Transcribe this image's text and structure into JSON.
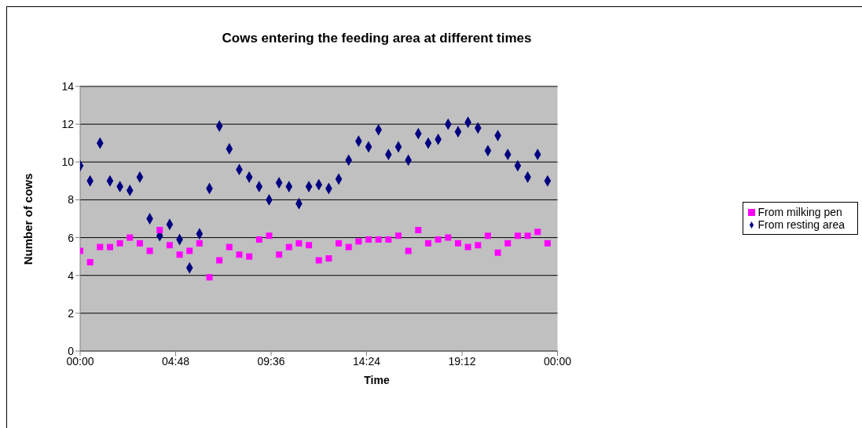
{
  "chart_data": {
    "type": "scatter",
    "title": "Cows entering the feeding area at different times",
    "xlabel": "Time",
    "ylabel": "Number of cows",
    "x": [
      0,
      0.5,
      1,
      1.5,
      2,
      2.5,
      3,
      3.5,
      4,
      4.5,
      5,
      5.5,
      6,
      6.5,
      7,
      7.5,
      8,
      8.5,
      9,
      9.5,
      10,
      10.5,
      11,
      11.5,
      12,
      12.5,
      13,
      13.5,
      14,
      14.5,
      15,
      15.5,
      16,
      16.5,
      17,
      17.5,
      18,
      18.5,
      19,
      19.5,
      20,
      20.5,
      21,
      21.5,
      22,
      22.5,
      23,
      23.5
    ],
    "series": [
      {
        "name": "From resting area",
        "color": "#000080",
        "marker": "diamond",
        "values": [
          9.8,
          9.0,
          11.0,
          9.0,
          8.7,
          8.5,
          9.2,
          7.0,
          6.1,
          6.7,
          5.9,
          4.4,
          6.2,
          8.6,
          11.9,
          10.7,
          9.6,
          9.2,
          8.7,
          8.0,
          8.9,
          8.7,
          7.8,
          8.7,
          8.8,
          8.6,
          9.1,
          10.1,
          11.1,
          10.8,
          11.7,
          10.4,
          10.8,
          10.1,
          11.5,
          11.0,
          11.2,
          12.0,
          11.6,
          12.1,
          11.8,
          10.6,
          11.4,
          10.4,
          9.8,
          9.2,
          10.4,
          9.0
        ]
      },
      {
        "name": "From milking pen",
        "color": "#ff00ff",
        "marker": "square",
        "values": [
          5.3,
          4.7,
          5.5,
          5.5,
          5.7,
          6.0,
          5.7,
          5.3,
          6.4,
          5.6,
          5.1,
          5.3,
          5.7,
          3.9,
          4.8,
          5.5,
          5.1,
          5.0,
          5.9,
          6.1,
          5.1,
          5.5,
          5.7,
          5.6,
          4.8,
          4.9,
          5.7,
          5.5,
          5.8,
          5.9,
          5.9,
          5.9,
          6.1,
          5.3,
          6.4,
          5.7,
          5.9,
          6.0,
          5.7,
          5.5,
          5.6,
          6.1,
          5.2,
          5.7,
          6.1,
          6.1,
          6.3,
          5.7
        ]
      }
    ],
    "xlim": [
      0,
      24
    ],
    "xticks": [
      {
        "value": 0,
        "label": "00:00"
      },
      {
        "value": 4.8,
        "label": "04:48"
      },
      {
        "value": 9.6,
        "label": "09:36"
      },
      {
        "value": 14.4,
        "label": "14:24"
      },
      {
        "value": 19.2,
        "label": "19:12"
      },
      {
        "value": 24,
        "label": "00:00"
      }
    ],
    "ylim": [
      0,
      14
    ],
    "yticks": [
      0,
      2,
      4,
      6,
      8,
      10,
      12,
      14
    ],
    "grid": "y",
    "legend": "right"
  }
}
